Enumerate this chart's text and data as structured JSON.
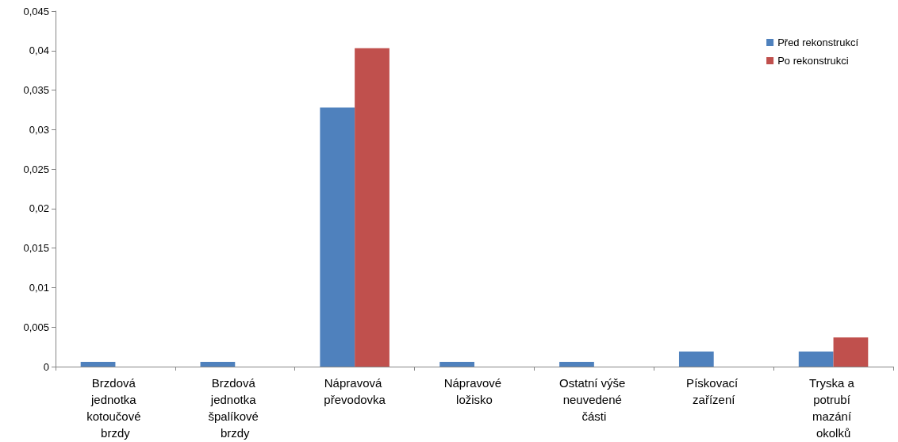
{
  "chart_data": {
    "type": "bar",
    "categories": [
      "Brzdová jednotka kotoučové brzdy",
      "Brzdová jednotka špalíkové brzdy",
      "Nápravová převodovka",
      "Nápravové ložisko",
      "Ostatní výše neuvedené části",
      "Pískovací zařízení",
      "Tryska a potrubí mazání okolků"
    ],
    "series": [
      {
        "name": "Před rekonstrukcí",
        "color": "#4f81bd",
        "values": [
          0.0006,
          0.0006,
          0.0328,
          0.0006,
          0.0006,
          0.0019,
          0.0019
        ]
      },
      {
        "name": "Po rekonstrukci",
        "color": "#c0504d",
        "values": [
          0,
          0,
          0.0403,
          0,
          0,
          0,
          0.0037
        ]
      }
    ],
    "ylim": [
      0,
      0.045
    ],
    "yticks": [
      0,
      {
        "value": 0.005,
        "label": "0,005"
      },
      {
        "value": 0.01,
        "label": "0,01"
      },
      {
        "value": 0.015,
        "label": "0,015"
      },
      {
        "value": 0.02,
        "label": "0,02"
      },
      {
        "value": 0.025,
        "label": "0,025"
      },
      {
        "value": 0.03,
        "label": "0,03"
      },
      {
        "value": 0.035,
        "label": "0,035"
      },
      {
        "value": 0.04,
        "label": "0,04"
      },
      {
        "value": 0.045,
        "label": "0,045"
      }
    ],
    "grid": false,
    "legend": "top right"
  }
}
